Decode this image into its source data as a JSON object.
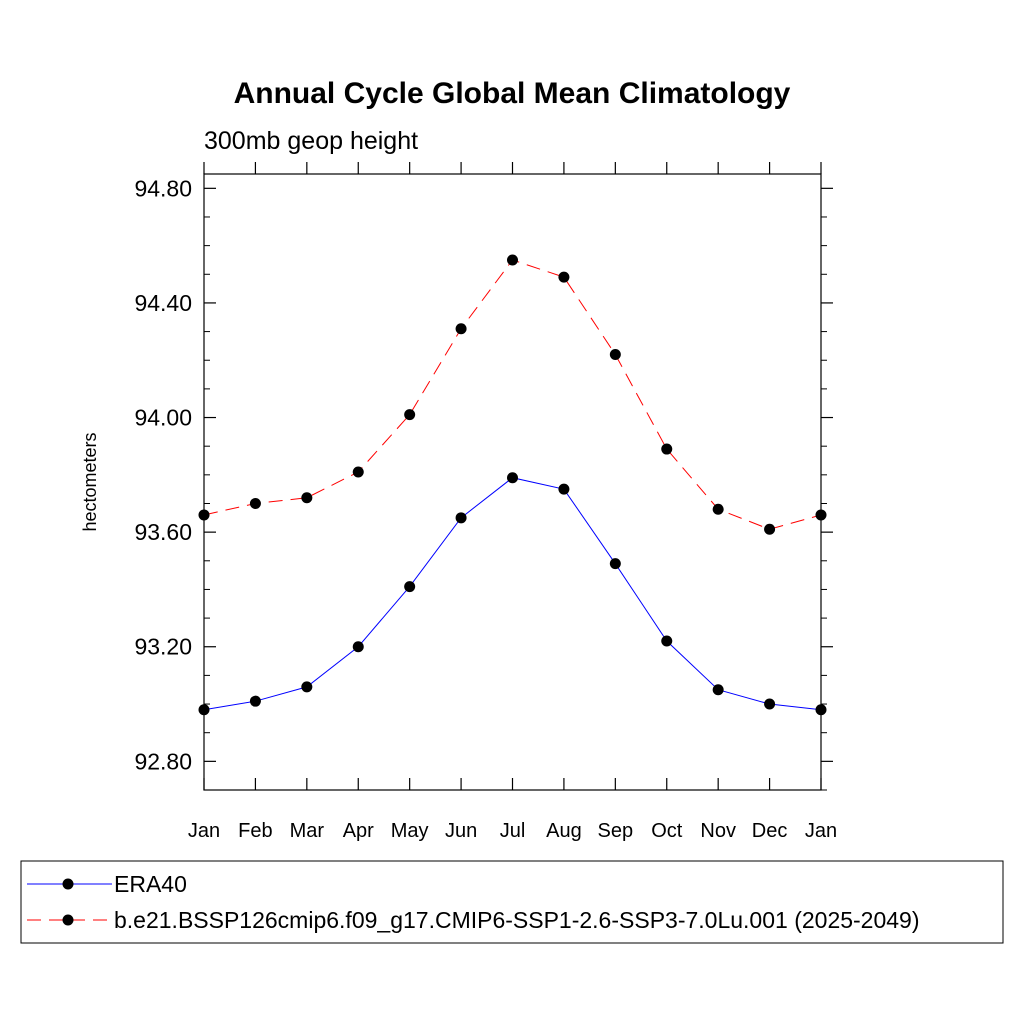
{
  "chart_data": {
    "type": "line",
    "title": "Annual Cycle Global Mean Climatology",
    "subtitle": "300mb geop height",
    "xlabel": "",
    "ylabel": "hectometers",
    "categories": [
      "Jan",
      "Feb",
      "Mar",
      "Apr",
      "May",
      "Jun",
      "Jul",
      "Aug",
      "Sep",
      "Oct",
      "Nov",
      "Dec",
      "Jan"
    ],
    "ylim": [
      92.7,
      94.85
    ],
    "yticks": [
      92.8,
      93.2,
      93.6,
      94.0,
      94.4,
      94.8
    ],
    "ytick_labels": [
      "92.80",
      "93.20",
      "93.60",
      "94.00",
      "94.40",
      "94.80"
    ],
    "grid": false,
    "legend_position": "bottom",
    "series": [
      {
        "name": "ERA40",
        "color": "#0000ff",
        "line_style": "solid",
        "marker": "filled-circle",
        "values": [
          92.98,
          93.01,
          93.06,
          93.2,
          93.41,
          93.65,
          93.79,
          93.75,
          93.49,
          93.22,
          93.05,
          93.0,
          92.98
        ]
      },
      {
        "name": "b.e21.BSSP126cmip6.f09_g17.CMIP6-SSP1-2.6-SSP3-7.0Lu.001 (2025-2049)",
        "color": "#ff0000",
        "line_style": "dashed",
        "marker": "filled-circle",
        "values": [
          93.66,
          93.7,
          93.72,
          93.81,
          94.01,
          94.31,
          94.55,
          94.49,
          94.22,
          93.89,
          93.68,
          93.61,
          93.66
        ]
      }
    ]
  }
}
